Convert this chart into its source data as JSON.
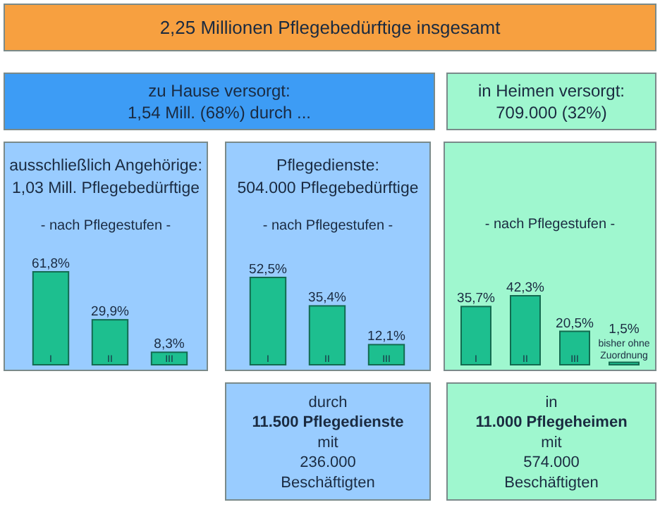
{
  "chart_data": [
    {
      "type": "other",
      "title": "2,25 Millionen Pflegebedürftige insgesamt"
    },
    {
      "type": "other",
      "title": "zu Hause versorgt:",
      "subtitle": "1,54 Mill. (68%) durch ..."
    },
    {
      "type": "other",
      "title": "in Heimen versorgt:",
      "subtitle": "709.000 (32%)"
    },
    {
      "type": "bar",
      "title": "ausschließlich Angehörige:",
      "subtitle": "1,03 Mill. Pflegebedürftige",
      "annotations": [
        "- nach Pflegestufen -"
      ],
      "categories": [
        "I",
        "II",
        "III"
      ],
      "values": [
        61.8,
        29.9,
        8.3
      ],
      "value_labels": [
        "61,8%",
        "29,9%",
        "8,3%"
      ],
      "color": "#1dbf8f"
    },
    {
      "type": "bar",
      "title": "Pflegedienste:",
      "subtitle": "504.000 Pflegebedürftige",
      "annotations": [
        "- nach Pflegestufen -"
      ],
      "categories": [
        "I",
        "II",
        "III"
      ],
      "values": [
        52.5,
        35.4,
        12.1
      ],
      "value_labels": [
        "52,5%",
        "35,4%",
        "12,1%"
      ],
      "color": "#1dbf8f"
    },
    {
      "type": "bar",
      "annotations": [
        "- nach Pflegestufen -"
      ],
      "categories": [
        "I",
        "II",
        "III",
        "bisher ohne Zuordnung"
      ],
      "values": [
        35.7,
        42.3,
        20.5,
        1.5
      ],
      "value_labels": [
        "35,7%",
        "42,3%",
        "20,5%",
        "1,5%"
      ],
      "color": "#1dbf8f"
    },
    {
      "type": "other",
      "annotations": [
        "durch",
        "11.500 Pflegedienste",
        "mit",
        "236.000",
        "Beschäftigten"
      ]
    },
    {
      "type": "other",
      "annotations": [
        "in",
        "11.000 Pflegeheimen",
        "mit",
        "574.000",
        "Beschäftigten"
      ]
    }
  ]
}
